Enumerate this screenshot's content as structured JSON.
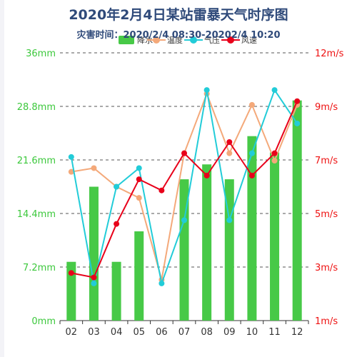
{
  "chart_data": {
    "type": "bar",
    "title": "2020年2月4日某站雷暴天气时序图",
    "subtitle": "灾害时间：2020/2/4 08:30-20202/4 10:20",
    "categories": [
      "02",
      "03",
      "04",
      "05",
      "06",
      "07",
      "08",
      "09",
      "10",
      "11",
      "12"
    ],
    "legend_position": "top-right",
    "grid": true,
    "axes": {
      "left": {
        "ylim": [
          0,
          36
        ],
        "ticks": [
          0,
          7.2,
          14.4,
          21.6,
          28.8,
          36
        ],
        "tick_labels": [
          "0mm",
          "7.2mm",
          "14.4mm",
          "21.6mm",
          "28.8mm",
          "36mm"
        ],
        "color": "#3cc83c"
      },
      "right": {
        "ylim": [
          1,
          12
        ],
        "tick_labels": [
          "1m/s",
          "3m/s",
          "5m/s",
          "7m/s",
          "9m/s",
          "12m/s"
        ],
        "color": "#ee1111"
      }
    },
    "series": [
      {
        "name": "降水",
        "type": "bar",
        "axis": "left",
        "color": "#47c947",
        "values": [
          7.9,
          18.0,
          7.9,
          12.0,
          0,
          19.0,
          21.0,
          19.0,
          24.8,
          22.6,
          29.6
        ]
      },
      {
        "name": "温度",
        "type": "line",
        "axis": "left",
        "color": "#f4a97a",
        "values": [
          20.0,
          20.5,
          18.0,
          16.5,
          5.5,
          22.5,
          30.5,
          22.5,
          29.0,
          21.5,
          29.0
        ]
      },
      {
        "name": "气压",
        "type": "line",
        "axis": "left",
        "color": "#22ccd8",
        "values": [
          22.0,
          5.0,
          18.0,
          20.5,
          5.0,
          13.5,
          31.0,
          13.5,
          22.5,
          31.0,
          26.5
        ]
      },
      {
        "name": "风速",
        "type": "line",
        "axis": "left",
        "color": "#e8001a",
        "values": [
          6.4,
          5.8,
          13.0,
          19.0,
          17.5,
          22.5,
          19.5,
          24.0,
          19.5,
          22.5,
          29.5
        ]
      }
    ]
  }
}
